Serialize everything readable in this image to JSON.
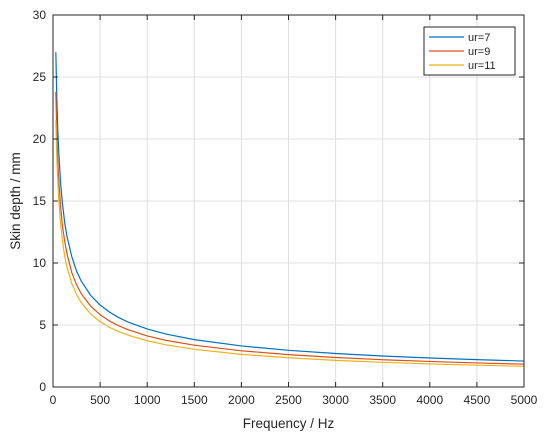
{
  "chart_data": {
    "type": "line",
    "title": "",
    "xlabel": "Frequency / Hz",
    "ylabel": "Skin depth / mm",
    "xlim": [
      0,
      5000
    ],
    "ylim": [
      0,
      30
    ],
    "xticks": [
      0,
      500,
      1000,
      1500,
      2000,
      2500,
      3000,
      3500,
      4000,
      4500,
      5000
    ],
    "yticks": [
      0,
      5,
      10,
      15,
      20,
      25,
      30
    ],
    "grid": true,
    "legend_position": "top-right",
    "x": [
      30,
      40,
      50,
      60,
      80,
      100,
      125,
      150,
      200,
      250,
      300,
      400,
      500,
      600,
      700,
      800,
      1000,
      1200,
      1500,
      2000,
      2500,
      3000,
      3500,
      4000,
      4500,
      5000
    ],
    "series": [
      {
        "name": "ur=7",
        "color": "#0072BD",
        "values": [
          27.0,
          23.4,
          20.9,
          19.1,
          16.5,
          14.8,
          13.2,
          12.1,
          10.5,
          9.35,
          8.54,
          7.39,
          6.61,
          6.04,
          5.59,
          5.23,
          4.68,
          4.27,
          3.82,
          3.31,
          2.96,
          2.7,
          2.5,
          2.34,
          2.21,
          2.09
        ]
      },
      {
        "name": "ur=9",
        "color": "#D95319",
        "values": [
          23.8,
          20.6,
          18.4,
          16.8,
          14.6,
          13.0,
          11.7,
          10.7,
          9.22,
          8.25,
          7.53,
          6.52,
          5.83,
          5.32,
          4.93,
          4.61,
          4.12,
          3.76,
          3.37,
          2.92,
          2.61,
          2.38,
          2.2,
          2.06,
          1.94,
          1.84
        ]
      },
      {
        "name": "ur=11",
        "color": "#EDB120",
        "values": [
          21.5,
          18.6,
          16.7,
          15.2,
          13.2,
          11.8,
          10.5,
          9.62,
          8.33,
          7.46,
          6.81,
          5.89,
          5.27,
          4.81,
          4.46,
          4.17,
          3.73,
          3.4,
          3.04,
          2.63,
          2.36,
          2.15,
          1.99,
          1.86,
          1.76,
          1.67
        ]
      }
    ]
  }
}
